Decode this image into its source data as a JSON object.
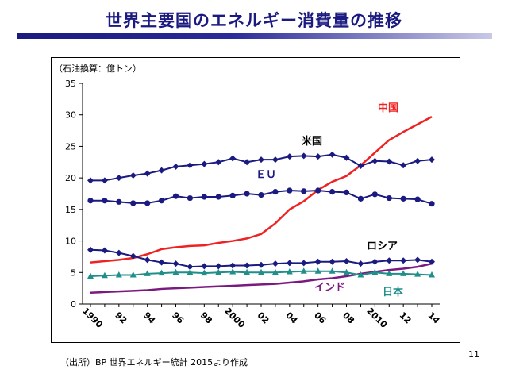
{
  "slide": {
    "title": "世界主要国のエネルギー消費量の推移",
    "source": "（出所）BP 世界エネルギー統計 2015より作成",
    "page_number": "11"
  },
  "chart_data": {
    "type": "line",
    "title": "",
    "xlabel": "",
    "ylabel": "（石油換算：億トン）",
    "x": [
      1990,
      1991,
      1992,
      1993,
      1994,
      1995,
      1996,
      1997,
      1998,
      1999,
      2000,
      2001,
      2002,
      2003,
      2004,
      2005,
      2006,
      2007,
      2008,
      2009,
      2010,
      2011,
      2012,
      2013,
      2014
    ],
    "x_tick_labels": [
      {
        "x": 1990,
        "label": "1990"
      },
      {
        "x": 1992,
        "label": "92"
      },
      {
        "x": 1994,
        "label": "94"
      },
      {
        "x": 1996,
        "label": "96"
      },
      {
        "x": 1998,
        "label": "98"
      },
      {
        "x": 2000,
        "label": "2000"
      },
      {
        "x": 2002,
        "label": "02"
      },
      {
        "x": 2004,
        "label": "04"
      },
      {
        "x": 2006,
        "label": "06"
      },
      {
        "x": 2008,
        "label": "08"
      },
      {
        "x": 2010,
        "label": "2010"
      },
      {
        "x": 2012,
        "label": "12"
      },
      {
        "x": 2014,
        "label": "14"
      }
    ],
    "xlim": [
      1990,
      2014
    ],
    "ylim": [
      0,
      35
    ],
    "y_ticks": [
      0,
      5,
      10,
      15,
      20,
      25,
      30,
      35
    ],
    "grid": false,
    "series": [
      {
        "name": "中国",
        "color": "#ee2222",
        "marker": "none",
        "values": [
          6.6,
          6.8,
          7.0,
          7.3,
          7.9,
          8.7,
          9.0,
          9.2,
          9.3,
          9.7,
          10.0,
          10.4,
          11.1,
          12.8,
          15.0,
          16.3,
          18.1,
          19.4,
          20.3,
          22.0,
          24.0,
          26.0,
          27.3,
          28.5,
          29.7
        ]
      },
      {
        "name": "米国",
        "color": "#1a1a80",
        "marker": "diamond",
        "values": [
          19.6,
          19.6,
          20.0,
          20.4,
          20.7,
          21.2,
          21.8,
          22.0,
          22.2,
          22.5,
          23.1,
          22.5,
          22.9,
          22.9,
          23.4,
          23.5,
          23.4,
          23.7,
          23.2,
          21.9,
          22.7,
          22.6,
          22.0,
          22.7,
          22.9
        ]
      },
      {
        "name": "ＥＵ",
        "color": "#1a1a80",
        "marker": "circle",
        "values": [
          16.4,
          16.4,
          16.2,
          16.0,
          16.0,
          16.4,
          17.1,
          16.8,
          17.0,
          17.0,
          17.2,
          17.5,
          17.3,
          17.8,
          18.0,
          17.9,
          18.0,
          17.8,
          17.7,
          16.7,
          17.4,
          16.8,
          16.7,
          16.6,
          15.9
        ]
      },
      {
        "name": "ロシア",
        "color": "#1a1a80",
        "marker": "diamond",
        "values": [
          8.6,
          8.5,
          8.1,
          7.6,
          7.0,
          6.6,
          6.4,
          5.9,
          6.0,
          6.0,
          6.1,
          6.1,
          6.2,
          6.4,
          6.5,
          6.5,
          6.7,
          6.7,
          6.8,
          6.4,
          6.7,
          6.9,
          6.9,
          7.0,
          6.7
        ]
      },
      {
        "name": "日本",
        "color": "#1f8f8a",
        "marker": "triangle",
        "values": [
          4.4,
          4.5,
          4.6,
          4.6,
          4.8,
          4.9,
          5.0,
          5.0,
          4.9,
          5.0,
          5.1,
          5.0,
          5.0,
          5.0,
          5.1,
          5.2,
          5.2,
          5.2,
          5.0,
          4.6,
          5.0,
          4.8,
          4.8,
          4.7,
          4.6
        ]
      },
      {
        "name": "インド",
        "color": "#7a1a80",
        "marker": "none",
        "values": [
          1.8,
          1.9,
          2.0,
          2.1,
          2.2,
          2.4,
          2.5,
          2.6,
          2.7,
          2.8,
          2.9,
          3.0,
          3.1,
          3.2,
          3.4,
          3.6,
          3.9,
          4.1,
          4.4,
          4.8,
          5.1,
          5.4,
          5.6,
          5.9,
          6.4
        ]
      }
    ],
    "series_labels": [
      {
        "series": "中国",
        "text": "中国",
        "color": "#ee2222"
      },
      {
        "series": "米国",
        "text": "米国",
        "color": "#000000"
      },
      {
        "series": "ＥＵ",
        "text": "ＥＵ",
        "color": "#1a1a80"
      },
      {
        "series": "ロシア",
        "text": "ロシア",
        "color": "#000000"
      },
      {
        "series": "インド",
        "text": "インド",
        "color": "#7a1a80"
      },
      {
        "series": "日本",
        "text": "日本",
        "color": "#1f8f8a"
      }
    ]
  }
}
